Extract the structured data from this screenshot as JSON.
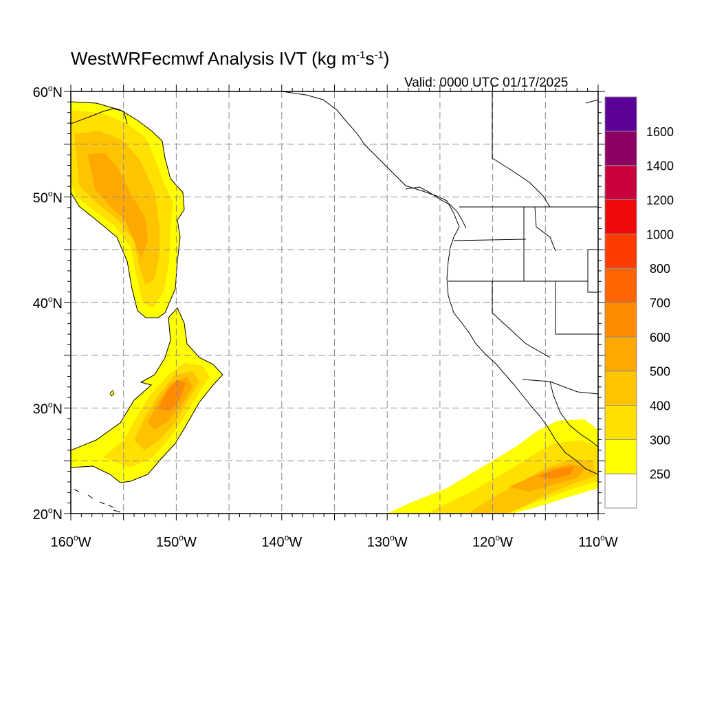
{
  "title": {
    "main": "WestWRFecmwf Analysis IVT (kg m",
    "sup1": "-1",
    "mid": "s",
    "sup2": "-1",
    "close": ")"
  },
  "valid": "Valid: 0000 UTC 01/17/2025",
  "map": {
    "lon_range": [
      -160,
      -110
    ],
    "lat_range": [
      20,
      60
    ],
    "grid_lon_step": 5,
    "grid_lat_step": 5,
    "grid": "dashed",
    "lon_labels": [
      {
        "value": -160,
        "text": "160",
        "hemi": "W"
      },
      {
        "value": -150,
        "text": "150",
        "hemi": "W"
      },
      {
        "value": -140,
        "text": "140",
        "hemi": "W"
      },
      {
        "value": -130,
        "text": "130",
        "hemi": "W"
      },
      {
        "value": -120,
        "text": "120",
        "hemi": "W"
      },
      {
        "value": -110,
        "text": "110",
        "hemi": "W"
      }
    ],
    "lat_labels": [
      {
        "value": 60,
        "text": "60",
        "hemi": "N"
      },
      {
        "value": 50,
        "text": "50",
        "hemi": "N"
      },
      {
        "value": 40,
        "text": "40",
        "hemi": "N"
      },
      {
        "value": 30,
        "text": "30",
        "hemi": "N"
      },
      {
        "value": 20,
        "text": "20",
        "hemi": "N"
      }
    ]
  },
  "colorbar": {
    "levels": [
      {
        "label": "250",
        "color": "#ffff00"
      },
      {
        "label": "300",
        "color": "#ffe000"
      },
      {
        "label": "400",
        "color": "#ffc400"
      },
      {
        "label": "500",
        "color": "#ffa800"
      },
      {
        "label": "600",
        "color": "#ff8c00"
      },
      {
        "label": "700",
        "color": "#ff6400"
      },
      {
        "label": "800",
        "color": "#ff3c00"
      },
      {
        "label": "1000",
        "color": "#f00a0a"
      },
      {
        "label": "1200",
        "color": "#c8003c"
      },
      {
        "label": "1400",
        "color": "#8c0064"
      },
      {
        "label": "1600",
        "color": "#5a0096"
      }
    ],
    "below_color": "#ffffff"
  },
  "colors": {
    "coast": "#000000",
    "grid": "#8c8c8c"
  }
}
